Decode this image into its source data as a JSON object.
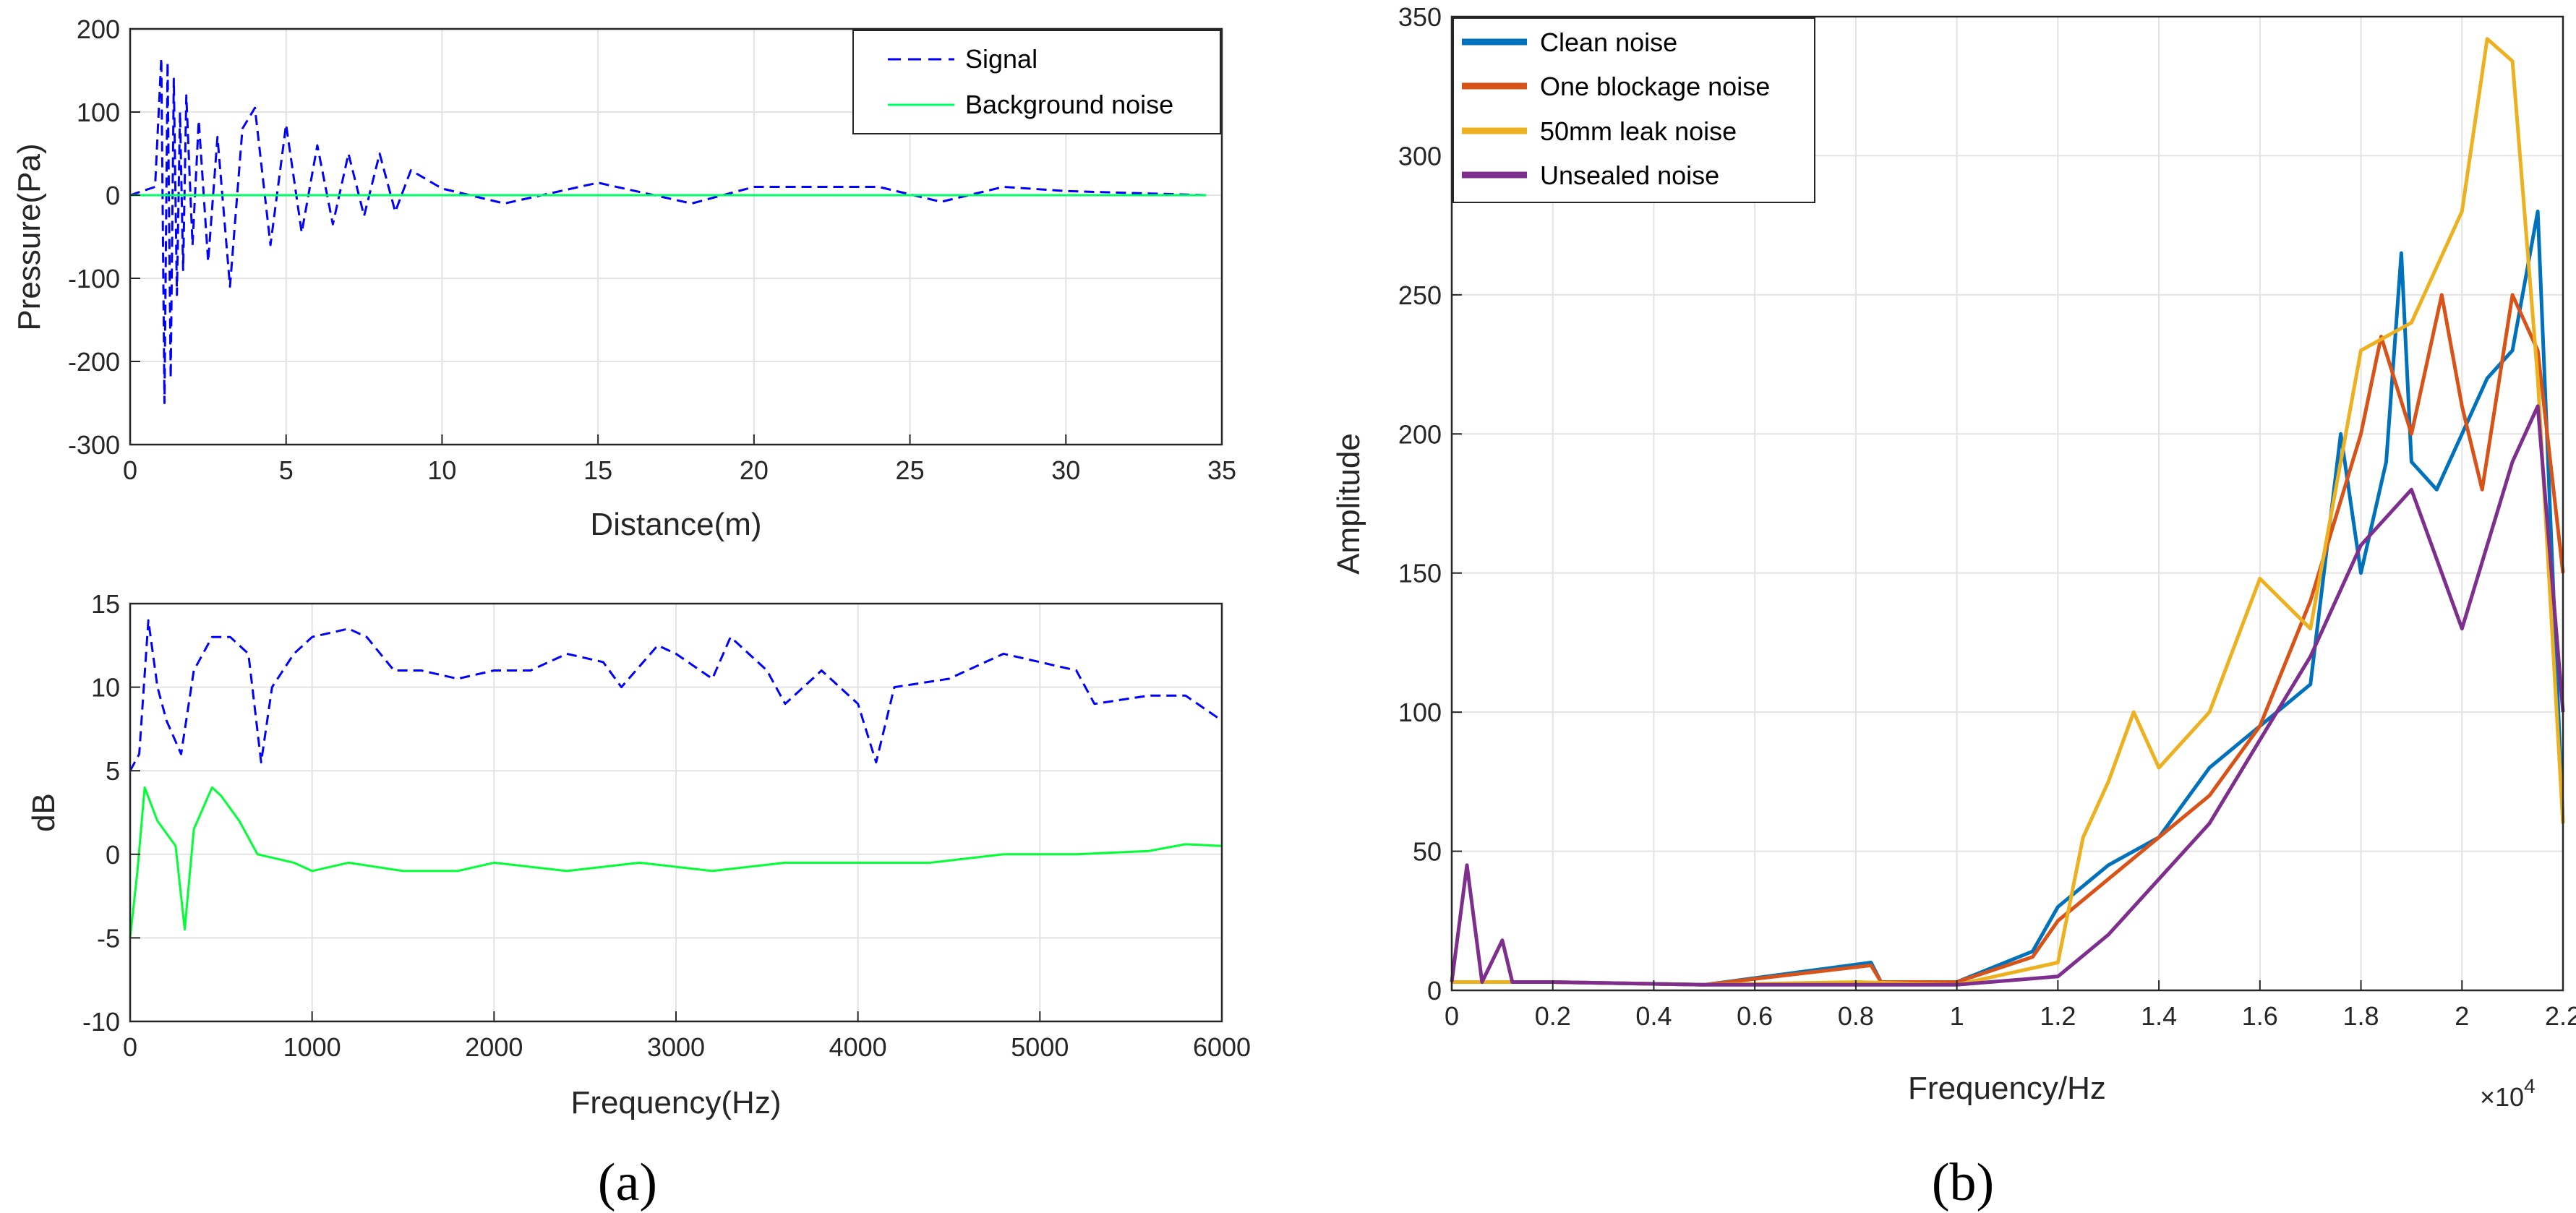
{
  "chart_data": [
    {
      "type": "line",
      "panel": "a-top",
      "xlabel": "Distance(m)",
      "ylabel": "Pressure(Pa)",
      "xlim": [
        0,
        35
      ],
      "ylim": [
        -300,
        200
      ],
      "xticks": [
        "0",
        "5",
        "10",
        "15",
        "20",
        "25",
        "30",
        "35"
      ],
      "yticks": [
        "200",
        "100",
        "0",
        "-100",
        "-200",
        "-300"
      ],
      "legend": "top-right",
      "series": [
        {
          "name": "Signal",
          "color": "#0000ff",
          "style": "dashed",
          "x": [
            0,
            0.8,
            1.0,
            1.1,
            1.2,
            1.3,
            1.4,
            1.5,
            1.6,
            1.7,
            1.8,
            2.0,
            2.2,
            2.5,
            2.8,
            3.2,
            3.6,
            4.0,
            4.5,
            5.0,
            5.5,
            6.0,
            6.5,
            7.0,
            7.5,
            8.0,
            8.5,
            9.0,
            10,
            12,
            15,
            18,
            20,
            24,
            26,
            28,
            30,
            34.5
          ],
          "y": [
            0,
            10,
            165,
            -250,
            160,
            -220,
            140,
            -120,
            100,
            -90,
            120,
            -60,
            90,
            -80,
            70,
            -110,
            80,
            105,
            -60,
            85,
            -45,
            60,
            -35,
            50,
            -25,
            50,
            -20,
            30,
            8,
            -10,
            15,
            -10,
            10,
            10,
            -8,
            10,
            5,
            0
          ]
        },
        {
          "name": "Background noise",
          "color": "#00ff66",
          "style": "solid",
          "x": [
            0,
            34.5
          ],
          "y": [
            0,
            0
          ]
        }
      ]
    },
    {
      "type": "line",
      "panel": "a-bottom",
      "xlabel": "Frequency(Hz)",
      "ylabel": "dB",
      "xlim": [
        0,
        6000
      ],
      "ylim": [
        -10,
        15
      ],
      "xticks": [
        "0",
        "1000",
        "2000",
        "3000",
        "4000",
        "5000",
        "6000"
      ],
      "yticks": [
        "15",
        "10",
        "5",
        "0",
        "-5",
        "-10"
      ],
      "series": [
        {
          "name": "Signal",
          "color": "#0000ff",
          "style": "dashed",
          "x": [
            0,
            50,
            100,
            150,
            200,
            280,
            350,
            450,
            550,
            650,
            720,
            780,
            900,
            1000,
            1200,
            1300,
            1450,
            1600,
            1800,
            2000,
            2200,
            2400,
            2600,
            2700,
            2900,
            3000,
            3200,
            3300,
            3500,
            3600,
            3800,
            4000,
            4100,
            4200,
            4500,
            4800,
            5000,
            5200,
            5300,
            5600,
            5800,
            6000
          ],
          "y": [
            5,
            6,
            14,
            10,
            8,
            6,
            11,
            13,
            13,
            12,
            5.5,
            10,
            12,
            13,
            13.5,
            13,
            11,
            11,
            10.5,
            11,
            11,
            12,
            11.5,
            10,
            12.5,
            12,
            10.5,
            13,
            11,
            9,
            11,
            9,
            5.5,
            10,
            10.5,
            12,
            11.5,
            11,
            9,
            9.5,
            9.5,
            8
          ]
        },
        {
          "name": "Background noise",
          "color": "#00ff33",
          "style": "solid",
          "x": [
            0,
            40,
            80,
            150,
            250,
            300,
            350,
            450,
            500,
            600,
            700,
            900,
            1000,
            1200,
            1500,
            1800,
            2000,
            2400,
            2800,
            3200,
            3600,
            4000,
            4400,
            4800,
            5200,
            5600,
            5800,
            6000
          ],
          "y": [
            -5,
            -1,
            4,
            2,
            0.5,
            -4.5,
            1.5,
            4,
            3.5,
            2,
            0,
            -0.5,
            -1,
            -0.5,
            -1,
            -1,
            -0.5,
            -1,
            -0.5,
            -1,
            -0.5,
            -0.5,
            -0.5,
            0,
            0,
            0.2,
            0.6,
            0.5
          ]
        }
      ]
    },
    {
      "type": "line",
      "panel": "b",
      "xlabel": "Frequency/Hz",
      "ylabel": "Amplitude",
      "xlim": [
        0,
        2.2
      ],
      "x_multiplier": "×10",
      "x_multiplier_exp": "4",
      "ylim": [
        0,
        350
      ],
      "xticks": [
        "0",
        "0.2",
        "0.4",
        "0.6",
        "0.8",
        "1",
        "1.2",
        "1.4",
        "1.6",
        "1.8",
        "2",
        "2.2"
      ],
      "yticks": [
        "350",
        "300",
        "250",
        "200",
        "150",
        "100",
        "50",
        "0"
      ],
      "legend": "top-left",
      "series": [
        {
          "name": "Clean noise",
          "color": "#0072bd",
          "x": [
            0,
            0.2,
            0.5,
            0.83,
            0.85,
            1.0,
            1.15,
            1.2,
            1.3,
            1.4,
            1.5,
            1.6,
            1.7,
            1.76,
            1.8,
            1.85,
            1.88,
            1.9,
            1.95,
            2.0,
            2.05,
            2.1,
            2.15,
            2.2
          ],
          "y": [
            3,
            3,
            2,
            10,
            3,
            3,
            14,
            30,
            45,
            55,
            80,
            95,
            110,
            200,
            150,
            190,
            265,
            190,
            180,
            200,
            220,
            230,
            280,
            60
          ]
        },
        {
          "name": "One blockage noise",
          "color": "#d95319",
          "x": [
            0,
            0.2,
            0.5,
            0.83,
            0.85,
            1.0,
            1.15,
            1.2,
            1.3,
            1.4,
            1.5,
            1.6,
            1.7,
            1.8,
            1.84,
            1.9,
            1.96,
            2.0,
            2.04,
            2.1,
            2.15,
            2.2
          ],
          "y": [
            3,
            3,
            2,
            9,
            3,
            3,
            12,
            25,
            40,
            55,
            70,
            95,
            140,
            200,
            235,
            200,
            250,
            210,
            180,
            250,
            230,
            150
          ]
        },
        {
          "name": " 50mm leak noise",
          "color": "#edb120",
          "x": [
            0,
            0.2,
            0.5,
            0.8,
            1.0,
            1.2,
            1.25,
            1.3,
            1.35,
            1.4,
            1.5,
            1.6,
            1.7,
            1.8,
            1.9,
            2.0,
            2.05,
            2.1,
            2.15,
            2.2
          ],
          "y": [
            3,
            3,
            2,
            3,
            2,
            10,
            55,
            75,
            100,
            80,
            100,
            148,
            130,
            230,
            240,
            280,
            342,
            334,
            220,
            60
          ]
        },
        {
          "name": "Unsealed noise",
          "color": "#7e2f8e",
          "x": [
            0,
            0.03,
            0.06,
            0.1,
            0.12,
            0.2,
            0.5,
            0.8,
            1.0,
            1.2,
            1.3,
            1.4,
            1.5,
            1.6,
            1.7,
            1.8,
            1.9,
            2.0,
            2.1,
            2.15,
            2.2
          ],
          "y": [
            3,
            45,
            3,
            18,
            3,
            3,
            2,
            2,
            2,
            5,
            20,
            40,
            60,
            90,
            120,
            160,
            180,
            130,
            190,
            210,
            100
          ]
        }
      ]
    }
  ],
  "captions": {
    "a": "(a)",
    "b": "(b)"
  }
}
